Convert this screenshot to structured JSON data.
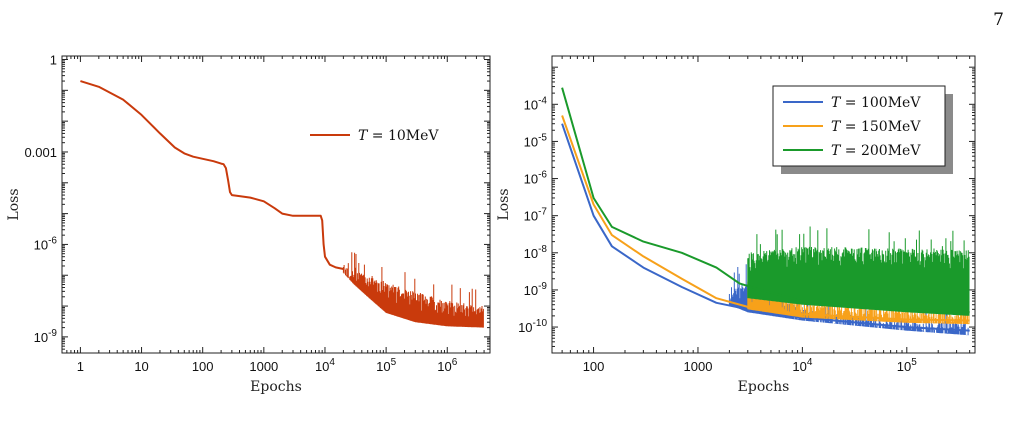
{
  "page_number": "7",
  "chart_data": [
    {
      "type": "line",
      "xlabel": "Epochs",
      "ylabel": "Loss",
      "x_scale": "log",
      "y_scale": "log",
      "xlim": [
        0.5,
        5000000
      ],
      "ylim": [
        3e-10,
        1.3
      ],
      "x_ticks": [
        {
          "value": 1,
          "label": "1"
        },
        {
          "value": 10,
          "label": "10"
        },
        {
          "value": 100,
          "label": "100"
        },
        {
          "value": 1000,
          "label": "1000"
        },
        {
          "value": 10000,
          "label": "10^4"
        },
        {
          "value": 100000,
          "label": "10^5"
        },
        {
          "value": 1000000,
          "label": "10^6"
        }
      ],
      "y_ticks": [
        {
          "value": 1,
          "label": "1"
        },
        {
          "value": 0.001,
          "label": "0.001"
        },
        {
          "value": 1e-06,
          "label": "10^-6"
        },
        {
          "value": 1e-09,
          "label": "10^-9"
        }
      ],
      "legend_position": "top-right",
      "series": [
        {
          "name": "T = 10MeV",
          "color": "#c93a0c",
          "x": [
            1,
            2,
            5,
            10,
            20,
            35,
            50,
            70,
            100,
            150,
            200,
            220,
            240,
            260,
            280,
            300,
            400,
            600,
            1000,
            1500,
            2000,
            3000,
            5000,
            7000,
            8500,
            9000,
            9500,
            10000,
            12000,
            15000,
            20000
          ],
          "y": [
            0.2,
            0.13,
            0.05,
            0.016,
            0.004,
            0.0014,
            0.0009,
            0.0007,
            0.0006,
            0.0005,
            0.00042,
            0.0004,
            0.0003,
            0.00012,
            5e-05,
            4e-05,
            3.7e-05,
            3.3e-05,
            2.5e-05,
            1.5e-05,
            1e-05,
            8.5e-06,
            8.5e-06,
            8.5e-06,
            8.5e-06,
            6e-06,
            1e-06,
            4e-07,
            2.2e-07,
            1.8e-07,
            1.6e-07
          ],
          "noise_x": [
            20000,
            30000,
            50000,
            100000,
            300000,
            1000000,
            4000000
          ],
          "noise_upper": [
            2e-07,
            1.6e-07,
            1.1e-07,
            6e-08,
            3e-08,
            1.5e-08,
            1e-08
          ],
          "noise_lower": [
            1.2e-07,
            5e-08,
            2e-08,
            6e-09,
            3e-09,
            2.2e-09,
            2e-09
          ]
        }
      ]
    },
    {
      "type": "line",
      "xlabel": "Epochs",
      "ylabel": "Loss",
      "x_scale": "log",
      "y_scale": "log",
      "xlim": [
        40,
        450000
      ],
      "ylim": [
        2e-11,
        0.002
      ],
      "x_ticks": [
        {
          "value": 100,
          "label": "100"
        },
        {
          "value": 1000,
          "label": "1000"
        },
        {
          "value": 10000,
          "label": "10^4"
        },
        {
          "value": 100000,
          "label": "10^5"
        }
      ],
      "y_ticks": [
        {
          "value": 0.0001,
          "label": "10^-4"
        },
        {
          "value": 1e-05,
          "label": "10^-5"
        },
        {
          "value": 1e-06,
          "label": "10^-6"
        },
        {
          "value": 1e-07,
          "label": "10^-7"
        },
        {
          "value": 1e-08,
          "label": "10^-8"
        },
        {
          "value": 1e-09,
          "label": "10^-9"
        },
        {
          "value": 1e-10,
          "label": "10^-10"
        }
      ],
      "legend_position": "top-right",
      "series": [
        {
          "name": "T = 100MeV",
          "color": "#3a67c8",
          "x": [
            50,
            100,
            150,
            300,
            700,
            1500,
            3000,
            10000,
            100000,
            400000
          ],
          "y": [
            3e-05,
            1e-07,
            1.5e-08,
            4e-09,
            1.2e-09,
            4.5e-10,
            3e-10,
            1.8e-10,
            1e-10,
            8e-11
          ],
          "noise_x": [
            2000,
            3000,
            10000,
            100000,
            400000
          ],
          "noise_upper": [
            1e-09,
            2e-09,
            3e-10,
            1.5e-10,
            1.2e-10
          ],
          "noise_lower": [
            4e-10,
            2.5e-10,
            1.5e-10,
            8e-11,
            6e-11
          ]
        },
        {
          "name": "T = 150MeV",
          "color": "#f7a11a",
          "x": [
            50,
            100,
            150,
            300,
            700,
            1500,
            3000,
            10000,
            100000,
            400000
          ],
          "y": [
            5e-05,
            2e-07,
            3e-08,
            8e-09,
            2e-09,
            6e-10,
            3.5e-10,
            2.2e-10,
            1.6e-10,
            1.5e-10
          ],
          "noise_x": [
            3000,
            10000,
            100000,
            400000
          ],
          "noise_upper": [
            2e-09,
            5e-10,
            3e-10,
            2.5e-10
          ],
          "noise_lower": [
            3e-10,
            1.8e-10,
            1.3e-10,
            1.2e-10
          ]
        },
        {
          "name": "T = 200MeV",
          "color": "#1a9a2b",
          "x": [
            50,
            100,
            150,
            300,
            700,
            1500,
            2500,
            4000,
            10000,
            100000,
            400000
          ],
          "y": [
            0.00028,
            3e-07,
            5e-08,
            2e-08,
            1e-08,
            4e-09,
            1.5e-09,
            1e-09,
            5e-10,
            3e-10,
            2.5e-10
          ],
          "noise_x": [
            3000,
            10000,
            100000,
            400000
          ],
          "noise_upper": [
            1e-08,
            1.5e-08,
            1.3e-08,
            1.2e-08
          ],
          "noise_lower": [
            6e-10,
            4e-10,
            2.5e-10,
            2e-10
          ]
        }
      ]
    }
  ]
}
